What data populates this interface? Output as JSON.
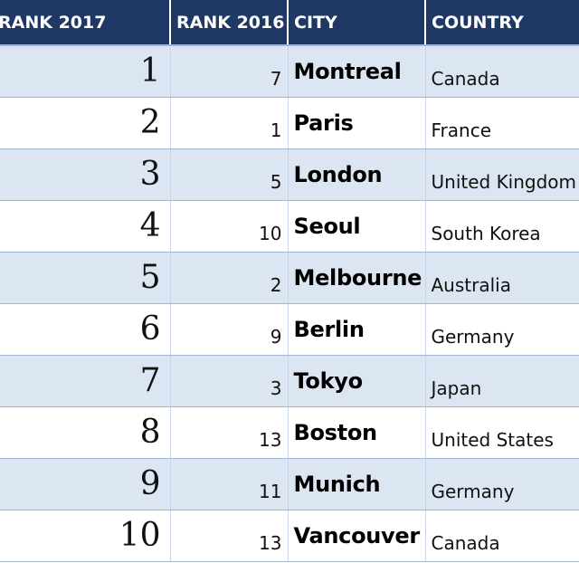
{
  "headers": {
    "rank_2017": "RANK 2017",
    "rank_2016": "RANK 2016",
    "city": "CITY",
    "country": "COUNTRY"
  },
  "rows": [
    {
      "rank_2017": "1",
      "rank_2016": "7",
      "city": "Montreal",
      "country": "Canada"
    },
    {
      "rank_2017": "2",
      "rank_2016": "1",
      "city": "Paris",
      "country": "France"
    },
    {
      "rank_2017": "3",
      "rank_2016": "5",
      "city": "London",
      "country": "United Kingdom"
    },
    {
      "rank_2017": "4",
      "rank_2016": "10",
      "city": "Seoul",
      "country": "South Korea"
    },
    {
      "rank_2017": "5",
      "rank_2016": "2",
      "city": "Melbourne",
      "country": "Australia"
    },
    {
      "rank_2017": "6",
      "rank_2016": "9",
      "city": "Berlin",
      "country": "Germany"
    },
    {
      "rank_2017": "7",
      "rank_2016": "3",
      "city": "Tokyo",
      "country": "Japan"
    },
    {
      "rank_2017": "8",
      "rank_2016": "13",
      "city": "Boston",
      "country": "United States"
    },
    {
      "rank_2017": "9",
      "rank_2016": "11",
      "city": "Munich",
      "country": "Germany"
    },
    {
      "rank_2017": "10",
      "rank_2016": "13",
      "city": "Vancouver",
      "country": "Canada"
    }
  ],
  "colors": {
    "header_bg": "#1f3864",
    "header_text": "#ffffff",
    "row_band": "#dce6f2",
    "row_plain": "#ffffff",
    "grid_line": "#9fb6d4"
  }
}
